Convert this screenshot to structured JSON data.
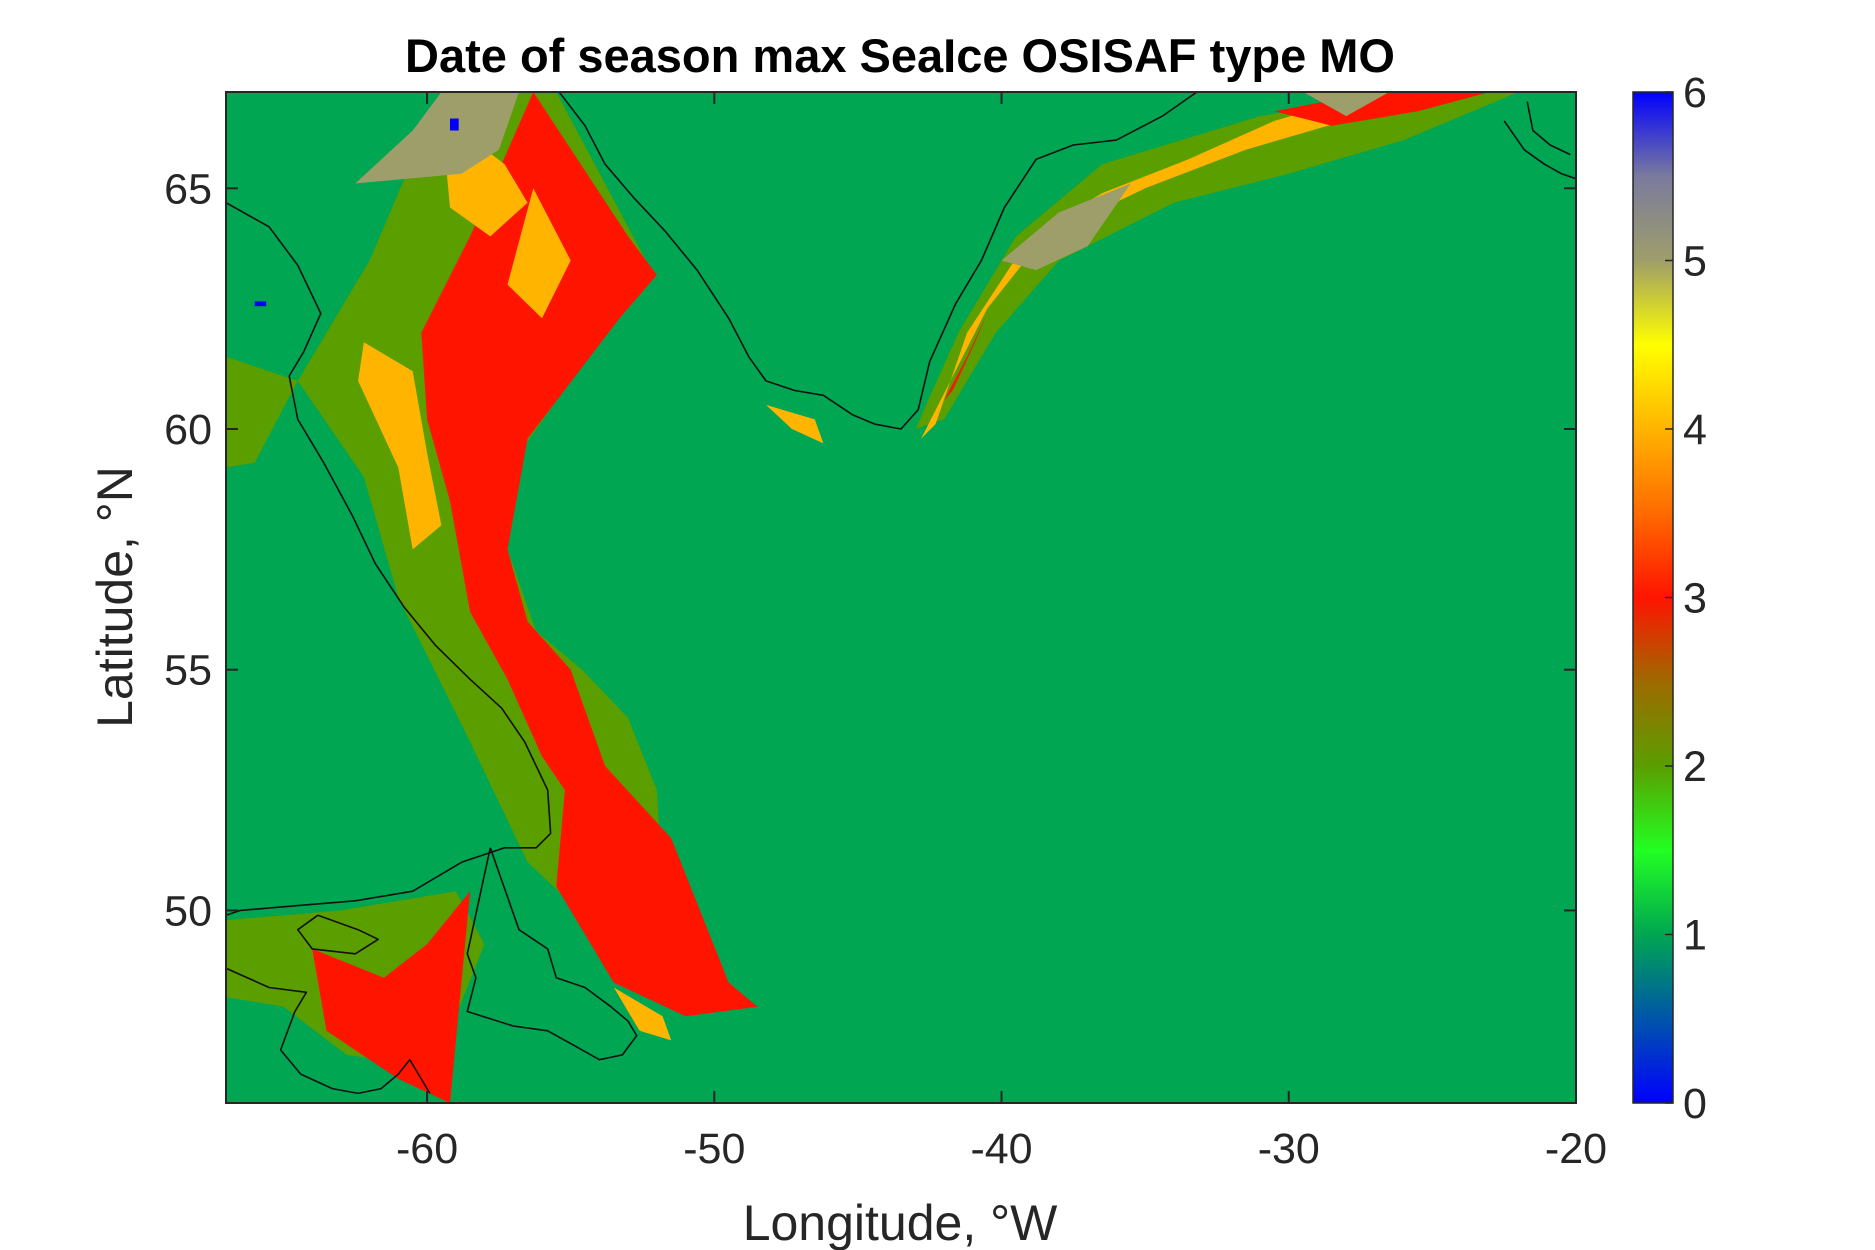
{
  "chart_data": {
    "type": "heatmap",
    "title": "Date of season max SeaIce OSISAF type MO",
    "xlabel": "Longitude, °W",
    "ylabel": "Latitude, °N",
    "xlim": [
      -67,
      -20
    ],
    "ylim": [
      46,
      67
    ],
    "xticks": [
      -60,
      -50,
      -40,
      -30,
      -20
    ],
    "xtick_labels": [
      "-60",
      "-50",
      "-40",
      "-30",
      "-20"
    ],
    "yticks": [
      50,
      55,
      60,
      65
    ],
    "ytick_labels": [
      "50",
      "55",
      "60",
      "65"
    ],
    "colorbar": {
      "range": [
        0,
        6
      ],
      "ticks": [
        0,
        1,
        2,
        3,
        4,
        5,
        6
      ],
      "tick_labels": [
        "0",
        "1",
        "2",
        "3",
        "4",
        "5",
        "6"
      ],
      "colormap_stops": [
        {
          "value": 0,
          "color": "#0000ff"
        },
        {
          "value": 0.5,
          "color": "#0055aa"
        },
        {
          "value": 1,
          "color": "#00a651"
        },
        {
          "value": 1.5,
          "color": "#22ff22"
        },
        {
          "value": 2,
          "color": "#5a9e00"
        },
        {
          "value": 2.5,
          "color": "#9e6a00"
        },
        {
          "value": 3,
          "color": "#ff1400"
        },
        {
          "value": 3.5,
          "color": "#ff6a00"
        },
        {
          "value": 4,
          "color": "#ffb400"
        },
        {
          "value": 4.5,
          "color": "#ffff00"
        },
        {
          "value": 5,
          "color": "#9e9e6a"
        },
        {
          "value": 5.5,
          "color": "#7a7a9e"
        },
        {
          "value": 6,
          "color": "#0000ff"
        }
      ]
    },
    "background_value": 1,
    "regions": [
      {
        "value": 2,
        "polygon": [
          [
            -64.5,
            61
          ],
          [
            -62,
            63.5
          ],
          [
            -59.5,
            67
          ],
          [
            -55.5,
            67
          ],
          [
            -52.2,
            63.3
          ],
          [
            -55,
            61
          ],
          [
            -56.8,
            59.5
          ],
          [
            -57.2,
            57.5
          ],
          [
            -56.2,
            55.8
          ],
          [
            -54.6,
            55
          ],
          [
            -53,
            54
          ],
          [
            -52,
            52.5
          ],
          [
            -51.8,
            50.5
          ],
          [
            -54,
            49.6
          ],
          [
            -56.5,
            51
          ],
          [
            -58.5,
            53.5
          ],
          [
            -61,
            56.5
          ],
          [
            -62.2,
            59
          ]
        ]
      },
      {
        "value": 2,
        "polygon": [
          [
            -67,
            61.5
          ],
          [
            -64.5,
            61
          ],
          [
            -66,
            59.3
          ],
          [
            -67,
            59.2
          ]
        ]
      },
      {
        "value": 2,
        "polygon": [
          [
            -67,
            49.8
          ],
          [
            -63,
            50
          ],
          [
            -59,
            50.4
          ],
          [
            -58,
            49.3
          ],
          [
            -59,
            47.8
          ],
          [
            -60.5,
            46.8
          ],
          [
            -62.8,
            47
          ],
          [
            -65,
            48
          ],
          [
            -67,
            48.2
          ]
        ]
      },
      {
        "value": 2,
        "polygon": [
          [
            -43,
            60
          ],
          [
            -41.5,
            62
          ],
          [
            -39.5,
            64
          ],
          [
            -36.5,
            65.5
          ],
          [
            -31,
            66.5
          ],
          [
            -26,
            67
          ],
          [
            -22,
            67
          ],
          [
            -26,
            66
          ],
          [
            -30,
            65.3
          ],
          [
            -34,
            64.7
          ],
          [
            -38,
            63.5
          ],
          [
            -40.2,
            62
          ],
          [
            -42,
            60.2
          ]
        ]
      },
      {
        "value": 3,
        "polygon": [
          [
            -56.3,
            67
          ],
          [
            -53,
            64
          ],
          [
            -52,
            63.2
          ],
          [
            -53.3,
            62.3
          ],
          [
            -56.5,
            59.8
          ],
          [
            -57.2,
            57.5
          ],
          [
            -56.5,
            56
          ],
          [
            -55,
            55
          ],
          [
            -53.8,
            53
          ],
          [
            -51.5,
            51.5
          ],
          [
            -49.5,
            48.5
          ],
          [
            -48.5,
            48
          ],
          [
            -51,
            47.8
          ],
          [
            -53.5,
            48.5
          ],
          [
            -55.5,
            50.5
          ],
          [
            -55.2,
            52.5
          ],
          [
            -56,
            53.2
          ],
          [
            -57.2,
            54.8
          ],
          [
            -58.5,
            56.2
          ],
          [
            -59.2,
            58.5
          ],
          [
            -60,
            60.2
          ],
          [
            -60.2,
            62
          ],
          [
            -58.5,
            64
          ]
        ]
      },
      {
        "value": 3,
        "polygon": [
          [
            -64,
            49.2
          ],
          [
            -61.5,
            48.6
          ],
          [
            -60,
            49.3
          ],
          [
            -58.5,
            50.4
          ],
          [
            -59.2,
            46
          ],
          [
            -61,
            46.5
          ],
          [
            -63.5,
            47.5
          ]
        ]
      },
      {
        "value": 4,
        "polygon": [
          [
            -59.5,
            66.5
          ],
          [
            -57.3,
            65.5
          ],
          [
            -56.5,
            64.7
          ],
          [
            -57.8,
            64
          ],
          [
            -59.2,
            64.6
          ]
        ]
      },
      {
        "value": 4,
        "polygon": [
          [
            -62.2,
            61.8
          ],
          [
            -60.5,
            61.2
          ],
          [
            -60,
            59.5
          ],
          [
            -59.5,
            58
          ],
          [
            -60.5,
            57.5
          ],
          [
            -61,
            59.2
          ],
          [
            -62.4,
            61
          ]
        ]
      },
      {
        "value": 4,
        "polygon": [
          [
            -56.3,
            65
          ],
          [
            -55,
            63.5
          ],
          [
            -56,
            62.3
          ],
          [
            -57.2,
            63
          ]
        ]
      },
      {
        "value": 4,
        "polygon": [
          [
            -48.2,
            60.5
          ],
          [
            -46.5,
            60.2
          ],
          [
            -46.2,
            59.7
          ],
          [
            -47.3,
            60
          ]
        ]
      },
      {
        "value": 4,
        "polygon": [
          [
            -53.5,
            48.4
          ],
          [
            -51.8,
            47.8
          ],
          [
            -51.5,
            47.3
          ],
          [
            -52.6,
            47.5
          ]
        ]
      },
      {
        "value": 4,
        "polygon": [
          [
            -42.8,
            59.8
          ],
          [
            -40.5,
            62.5
          ],
          [
            -38.5,
            64
          ],
          [
            -35,
            65
          ],
          [
            -31.5,
            65.8
          ],
          [
            -27.5,
            66.5
          ],
          [
            -24,
            67
          ],
          [
            -27,
            67
          ],
          [
            -30.5,
            66.4
          ],
          [
            -33.5,
            65.6
          ],
          [
            -36.5,
            64.9
          ],
          [
            -39,
            64
          ],
          [
            -41.2,
            62
          ],
          [
            -42.3,
            60.1
          ]
        ]
      },
      {
        "value": 3,
        "polygon": [
          [
            -42,
            60.6
          ],
          [
            -41.2,
            61.5
          ],
          [
            -40.5,
            62.4
          ],
          [
            -41,
            61.7
          ],
          [
            -41.7,
            60.8
          ]
        ]
      },
      {
        "value": 3,
        "polygon": [
          [
            -30.5,
            66.6
          ],
          [
            -27,
            67
          ],
          [
            -23,
            67
          ],
          [
            -25.5,
            66.6
          ],
          [
            -28.5,
            66.3
          ]
        ]
      },
      {
        "value": 5,
        "polygon": [
          [
            -62.5,
            65.1
          ],
          [
            -60.5,
            66.2
          ],
          [
            -59.5,
            67
          ],
          [
            -56.8,
            67
          ],
          [
            -57.5,
            65.8
          ],
          [
            -58.8,
            65.3
          ]
        ]
      },
      {
        "value": 5,
        "polygon": [
          [
            -40,
            63.5
          ],
          [
            -38,
            64.5
          ],
          [
            -35.5,
            65.1
          ],
          [
            -37,
            63.8
          ],
          [
            -38.8,
            63.3
          ]
        ]
      },
      {
        "value": 5,
        "polygon": [
          [
            -29.5,
            67
          ],
          [
            -26.5,
            67
          ],
          [
            -28,
            66.5
          ]
        ]
      },
      {
        "value": 6,
        "polygon": [
          [
            -59.2,
            66.2
          ],
          [
            -58.9,
            66.2
          ],
          [
            -58.9,
            66.45
          ],
          [
            -59.2,
            66.45
          ]
        ]
      },
      {
        "value": 6,
        "polygon": [
          [
            -66,
            62.55
          ],
          [
            -65.6,
            62.55
          ],
          [
            -65.6,
            62.65
          ],
          [
            -66,
            62.65
          ]
        ]
      }
    ],
    "coastlines": [
      [
        [
          -67,
          64.7
        ],
        [
          -65.5,
          64.2
        ],
        [
          -64.5,
          63.4
        ],
        [
          -63.7,
          62.4
        ],
        [
          -64.3,
          61.6
        ],
        [
          -64.8,
          61.1
        ]
      ],
      [
        [
          -64.8,
          61.1
        ],
        [
          -64.5,
          60.2
        ],
        [
          -63.6,
          59.3
        ],
        [
          -62.6,
          58.2
        ],
        [
          -61.8,
          57.2
        ],
        [
          -60.8,
          56.3
        ],
        [
          -59.7,
          55.5
        ],
        [
          -58.5,
          54.8
        ],
        [
          -57.4,
          54.2
        ],
        [
          -56.6,
          53.5
        ],
        [
          -55.8,
          52.5
        ],
        [
          -55.7,
          51.6
        ],
        [
          -56.2,
          51.3
        ],
        [
          -57.3,
          51.3
        ],
        [
          -58.8,
          51
        ],
        [
          -60.5,
          50.4
        ],
        [
          -62.5,
          50.2
        ],
        [
          -64.5,
          50.1
        ],
        [
          -66.5,
          50
        ],
        [
          -67,
          49.9
        ]
      ],
      [
        [
          -57.8,
          51.3
        ],
        [
          -56.8,
          49.6
        ],
        [
          -55.8,
          49.2
        ],
        [
          -55.5,
          48.6
        ],
        [
          -54.5,
          48.4
        ],
        [
          -53.6,
          48
        ],
        [
          -53,
          47.7
        ],
        [
          -52.7,
          47.4
        ],
        [
          -53.2,
          47
        ],
        [
          -54,
          46.9
        ],
        [
          -54.9,
          47.2
        ],
        [
          -55.8,
          47.5
        ],
        [
          -57,
          47.6
        ],
        [
          -58.6,
          47.9
        ],
        [
          -58.3,
          48.6
        ],
        [
          -58.6,
          49.1
        ],
        [
          -57.8,
          51.3
        ]
      ],
      [
        [
          -67,
          48.8
        ],
        [
          -65.5,
          48.4
        ],
        [
          -64.2,
          48.3
        ],
        [
          -64.6,
          47.9
        ],
        [
          -65.1,
          47.1
        ],
        [
          -64.4,
          46.6
        ],
        [
          -63.3,
          46.3
        ],
        [
          -62.4,
          46.2
        ],
        [
          -61.6,
          46.3
        ],
        [
          -61,
          46.6
        ],
        [
          -60.6,
          46.9
        ],
        [
          -60.3,
          46.6
        ],
        [
          -59.9,
          46.2
        ]
      ],
      [
        [
          -63.8,
          49.9
        ],
        [
          -62.4,
          49.6
        ],
        [
          -61.7,
          49.4
        ],
        [
          -62.5,
          49.1
        ],
        [
          -64,
          49.2
        ],
        [
          -64.5,
          49.6
        ],
        [
          -63.8,
          49.9
        ]
      ],
      [
        [
          -55.4,
          67
        ],
        [
          -54.5,
          66.3
        ],
        [
          -53.8,
          65.5
        ],
        [
          -52.8,
          64.8
        ],
        [
          -51.7,
          64.1
        ],
        [
          -50.6,
          63.3
        ],
        [
          -49.5,
          62.3
        ],
        [
          -48.8,
          61.5
        ],
        [
          -48.2,
          61
        ],
        [
          -47.2,
          60.8
        ],
        [
          -46.2,
          60.7
        ],
        [
          -45.2,
          60.3
        ],
        [
          -44.4,
          60.1
        ],
        [
          -43.5,
          60
        ],
        [
          -42.9,
          60.4
        ],
        [
          -42.5,
          61.4
        ],
        [
          -41.6,
          62.6
        ],
        [
          -40.7,
          63.5
        ],
        [
          -39.9,
          64.6
        ],
        [
          -38.8,
          65.6
        ],
        [
          -37.5,
          65.9
        ],
        [
          -36,
          66
        ],
        [
          -34.4,
          66.5
        ],
        [
          -33.2,
          67
        ]
      ],
      [
        [
          -22.5,
          66.4
        ],
        [
          -21.8,
          65.8
        ],
        [
          -21.1,
          65.5
        ],
        [
          -20.5,
          65.3
        ],
        [
          -20,
          65.2
        ]
      ],
      [
        [
          -21.7,
          66.8
        ],
        [
          -21.5,
          66.2
        ],
        [
          -20.9,
          65.9
        ],
        [
          -20.2,
          65.7
        ]
      ]
    ]
  }
}
